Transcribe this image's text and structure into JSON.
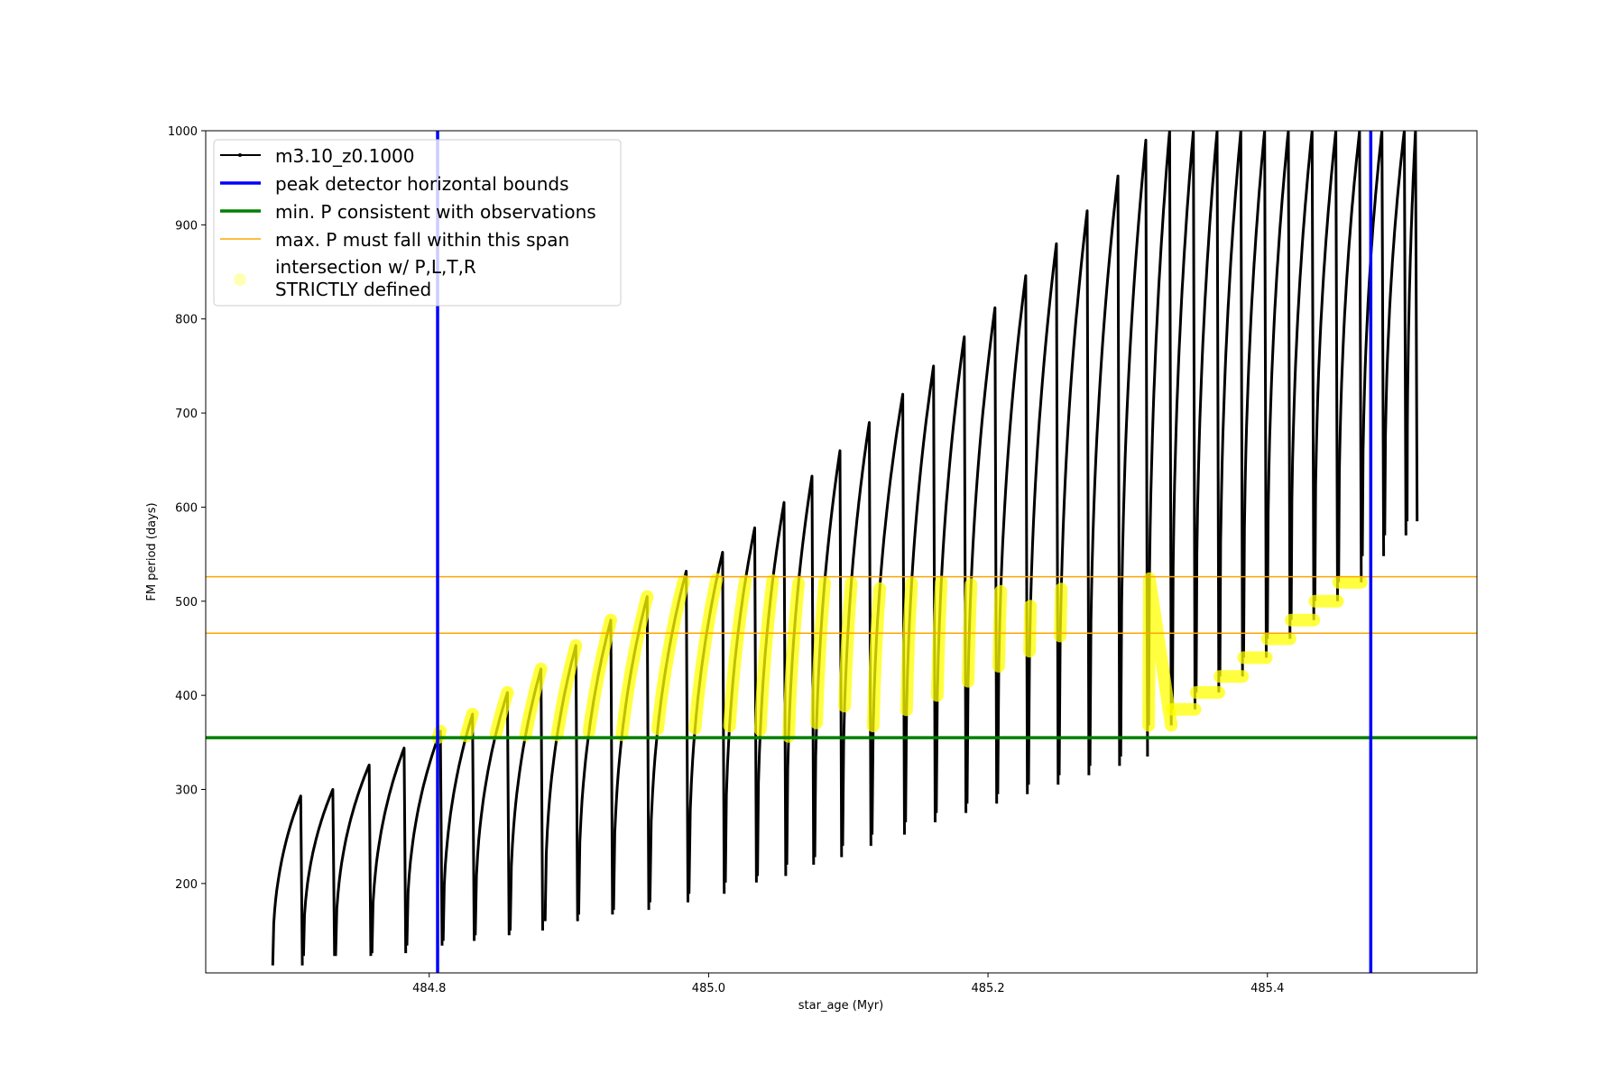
{
  "chart_data": {
    "type": "line",
    "title": "",
    "xlabel": "star_age (Myr)",
    "ylabel": "FM period (days)",
    "xlim": [
      484.64,
      485.55
    ],
    "ylim": [
      105,
      1000
    ],
    "x_ticks": [
      484.8,
      485.0,
      485.2,
      485.4
    ],
    "y_ticks": [
      200,
      300,
      400,
      500,
      600,
      700,
      800,
      900,
      1000
    ],
    "grid": false,
    "legend_position": "upper-left",
    "legend": [
      "m3.10_z0.1000",
      "peak detector horizontal bounds",
      "min. P consistent with observations",
      "max. P must fall within this span",
      "intersection w/ P,L,T,R",
      "STRICTLY defined"
    ],
    "colors": {
      "track": "#000000",
      "bounds": "#0000ff",
      "min_p": "#008000",
      "max_p_span": "#ffa500",
      "intersection": "#ffff00"
    },
    "series": [
      {
        "name": "m3.10_z0.1000",
        "style": "black line with dot markers",
        "cycles": [
          {
            "start": 484.688,
            "end": 484.708,
            "min": 113,
            "max": 293
          },
          {
            "start": 484.71,
            "end": 484.731,
            "min": 123,
            "max": 300
          },
          {
            "start": 484.733,
            "end": 484.757,
            "min": 123,
            "max": 326
          },
          {
            "start": 484.759,
            "end": 484.782,
            "min": 126,
            "max": 344
          },
          {
            "start": 484.784,
            "end": 484.808,
            "min": 134,
            "max": 362
          },
          {
            "start": 484.81,
            "end": 484.831,
            "min": 139,
            "max": 380
          },
          {
            "start": 484.833,
            "end": 484.856,
            "min": 145,
            "max": 403
          },
          {
            "start": 484.858,
            "end": 484.88,
            "min": 150,
            "max": 428
          },
          {
            "start": 484.883,
            "end": 484.905,
            "min": 160,
            "max": 453
          },
          {
            "start": 484.907,
            "end": 484.93,
            "min": 167,
            "max": 480
          },
          {
            "start": 484.932,
            "end": 484.956,
            "min": 172,
            "max": 505
          },
          {
            "start": 484.958,
            "end": 484.984,
            "min": 180,
            "max": 532
          },
          {
            "start": 484.986,
            "end": 485.01,
            "min": 189,
            "max": 552
          },
          {
            "start": 485.012,
            "end": 485.033,
            "min": 201,
            "max": 578
          },
          {
            "start": 485.035,
            "end": 485.054,
            "min": 208,
            "max": 605
          },
          {
            "start": 485.056,
            "end": 485.074,
            "min": 220,
            "max": 633
          },
          {
            "start": 485.076,
            "end": 485.094,
            "min": 228,
            "max": 660
          },
          {
            "start": 485.096,
            "end": 485.115,
            "min": 240,
            "max": 690
          },
          {
            "start": 485.117,
            "end": 485.139,
            "min": 252,
            "max": 720
          },
          {
            "start": 485.141,
            "end": 485.161,
            "min": 265,
            "max": 750
          },
          {
            "start": 485.163,
            "end": 485.183,
            "min": 275,
            "max": 781
          },
          {
            "start": 485.185,
            "end": 485.205,
            "min": 285,
            "max": 812
          },
          {
            "start": 485.207,
            "end": 485.227,
            "min": 295,
            "max": 846
          },
          {
            "start": 485.229,
            "end": 485.249,
            "min": 305,
            "max": 880
          },
          {
            "start": 485.251,
            "end": 485.271,
            "min": 315,
            "max": 915
          },
          {
            "start": 485.273,
            "end": 485.293,
            "min": 325,
            "max": 952
          },
          {
            "start": 485.295,
            "end": 485.313,
            "min": 335,
            "max": 990
          },
          {
            "start": 485.315,
            "end": 485.33,
            "min": 368,
            "max": 1000
          },
          {
            "start": 485.332,
            "end": 485.347,
            "min": 385,
            "max": 1000
          },
          {
            "start": 485.349,
            "end": 485.364,
            "min": 403,
            "max": 1000
          },
          {
            "start": 485.366,
            "end": 485.381,
            "min": 420,
            "max": 1000
          },
          {
            "start": 485.383,
            "end": 485.398,
            "min": 440,
            "max": 1000
          },
          {
            "start": 485.4,
            "end": 485.415,
            "min": 460,
            "max": 1000
          },
          {
            "start": 485.417,
            "end": 485.432,
            "min": 480,
            "max": 1000
          },
          {
            "start": 485.434,
            "end": 485.449,
            "min": 500,
            "max": 1000
          },
          {
            "start": 485.451,
            "end": 485.466,
            "min": 520,
            "max": 1000
          },
          {
            "start": 485.468,
            "end": 485.482,
            "min": 548,
            "max": 1000
          },
          {
            "start": 485.484,
            "end": 485.498,
            "min": 570,
            "max": 1000
          },
          {
            "start": 485.5,
            "end": 485.506,
            "min": 585,
            "max": 1000
          }
        ]
      }
    ],
    "vertical_lines": [
      484.806,
      485.474
    ],
    "min_p": 355,
    "max_p_span": [
      466,
      526
    ]
  }
}
